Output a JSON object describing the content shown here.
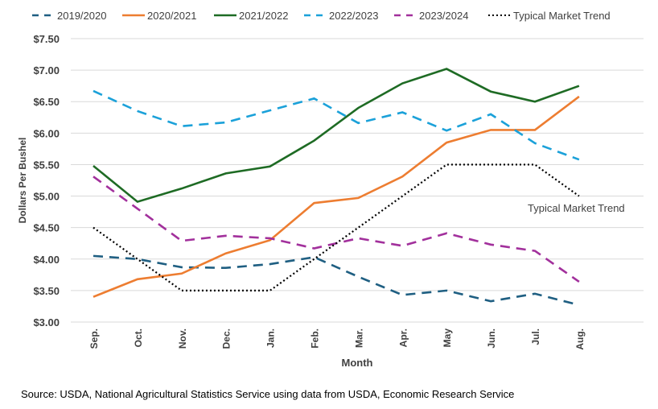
{
  "chart_data": {
    "type": "line",
    "title": "",
    "xlabel": "Month",
    "ylabel": "Dollars Per Bushel",
    "categories": [
      "Sep.",
      "Oct.",
      "Nov.",
      "Dec.",
      "Jan.",
      "Feb.",
      "Mar.",
      "Apr.",
      "May",
      "Jun.",
      "Jul.",
      "Aug."
    ],
    "ylim": [
      3.0,
      7.5
    ],
    "yticks": [
      "$3.00",
      "$3.50",
      "$4.00",
      "$4.50",
      "$5.00",
      "$5.50",
      "$6.00",
      "$6.50",
      "$7.00",
      "$7.50"
    ],
    "grid": "horizontal",
    "legend": "top",
    "series": [
      {
        "name": "2019/2020",
        "color": "#1f5f82",
        "style": "dashed",
        "values": [
          4.05,
          4.0,
          3.87,
          3.86,
          3.92,
          4.03,
          3.72,
          3.43,
          3.5,
          3.33,
          3.45,
          3.27
        ]
      },
      {
        "name": "2020/2021",
        "color": "#ed7d31",
        "style": "solid",
        "values": [
          3.4,
          3.68,
          3.77,
          4.09,
          4.3,
          4.89,
          4.97,
          5.31,
          5.85,
          6.05,
          6.05,
          6.58
        ]
      },
      {
        "name": "2021/2022",
        "color": "#1e6b24",
        "style": "solid",
        "values": [
          5.48,
          4.91,
          5.12,
          5.36,
          5.47,
          5.88,
          6.4,
          6.79,
          7.02,
          6.66,
          6.5,
          6.75
        ]
      },
      {
        "name": "2022/2023",
        "color": "#1ba1d9",
        "style": "dashed",
        "values": [
          6.67,
          6.35,
          6.11,
          6.17,
          6.36,
          6.55,
          6.16,
          6.33,
          6.04,
          6.3,
          5.84,
          5.58
        ]
      },
      {
        "name": "2023/2024",
        "color": "#a2309c",
        "style": "dashed",
        "values": [
          5.31,
          4.8,
          4.29,
          4.37,
          4.33,
          4.17,
          4.33,
          4.21,
          4.41,
          4.23,
          4.13,
          3.64
        ]
      },
      {
        "name": "Typical Market Trend",
        "color": "#000000",
        "style": "dotted",
        "values": [
          4.5,
          4.0,
          3.5,
          3.5,
          3.5,
          4.0,
          4.5,
          5.0,
          5.5,
          5.5,
          5.5,
          5.0
        ]
      }
    ],
    "annotations": [
      "Typical Market Trend"
    ]
  },
  "source": "Source: USDA, National Agricultural Statistics Service using data from USDA, Economic Research Service"
}
